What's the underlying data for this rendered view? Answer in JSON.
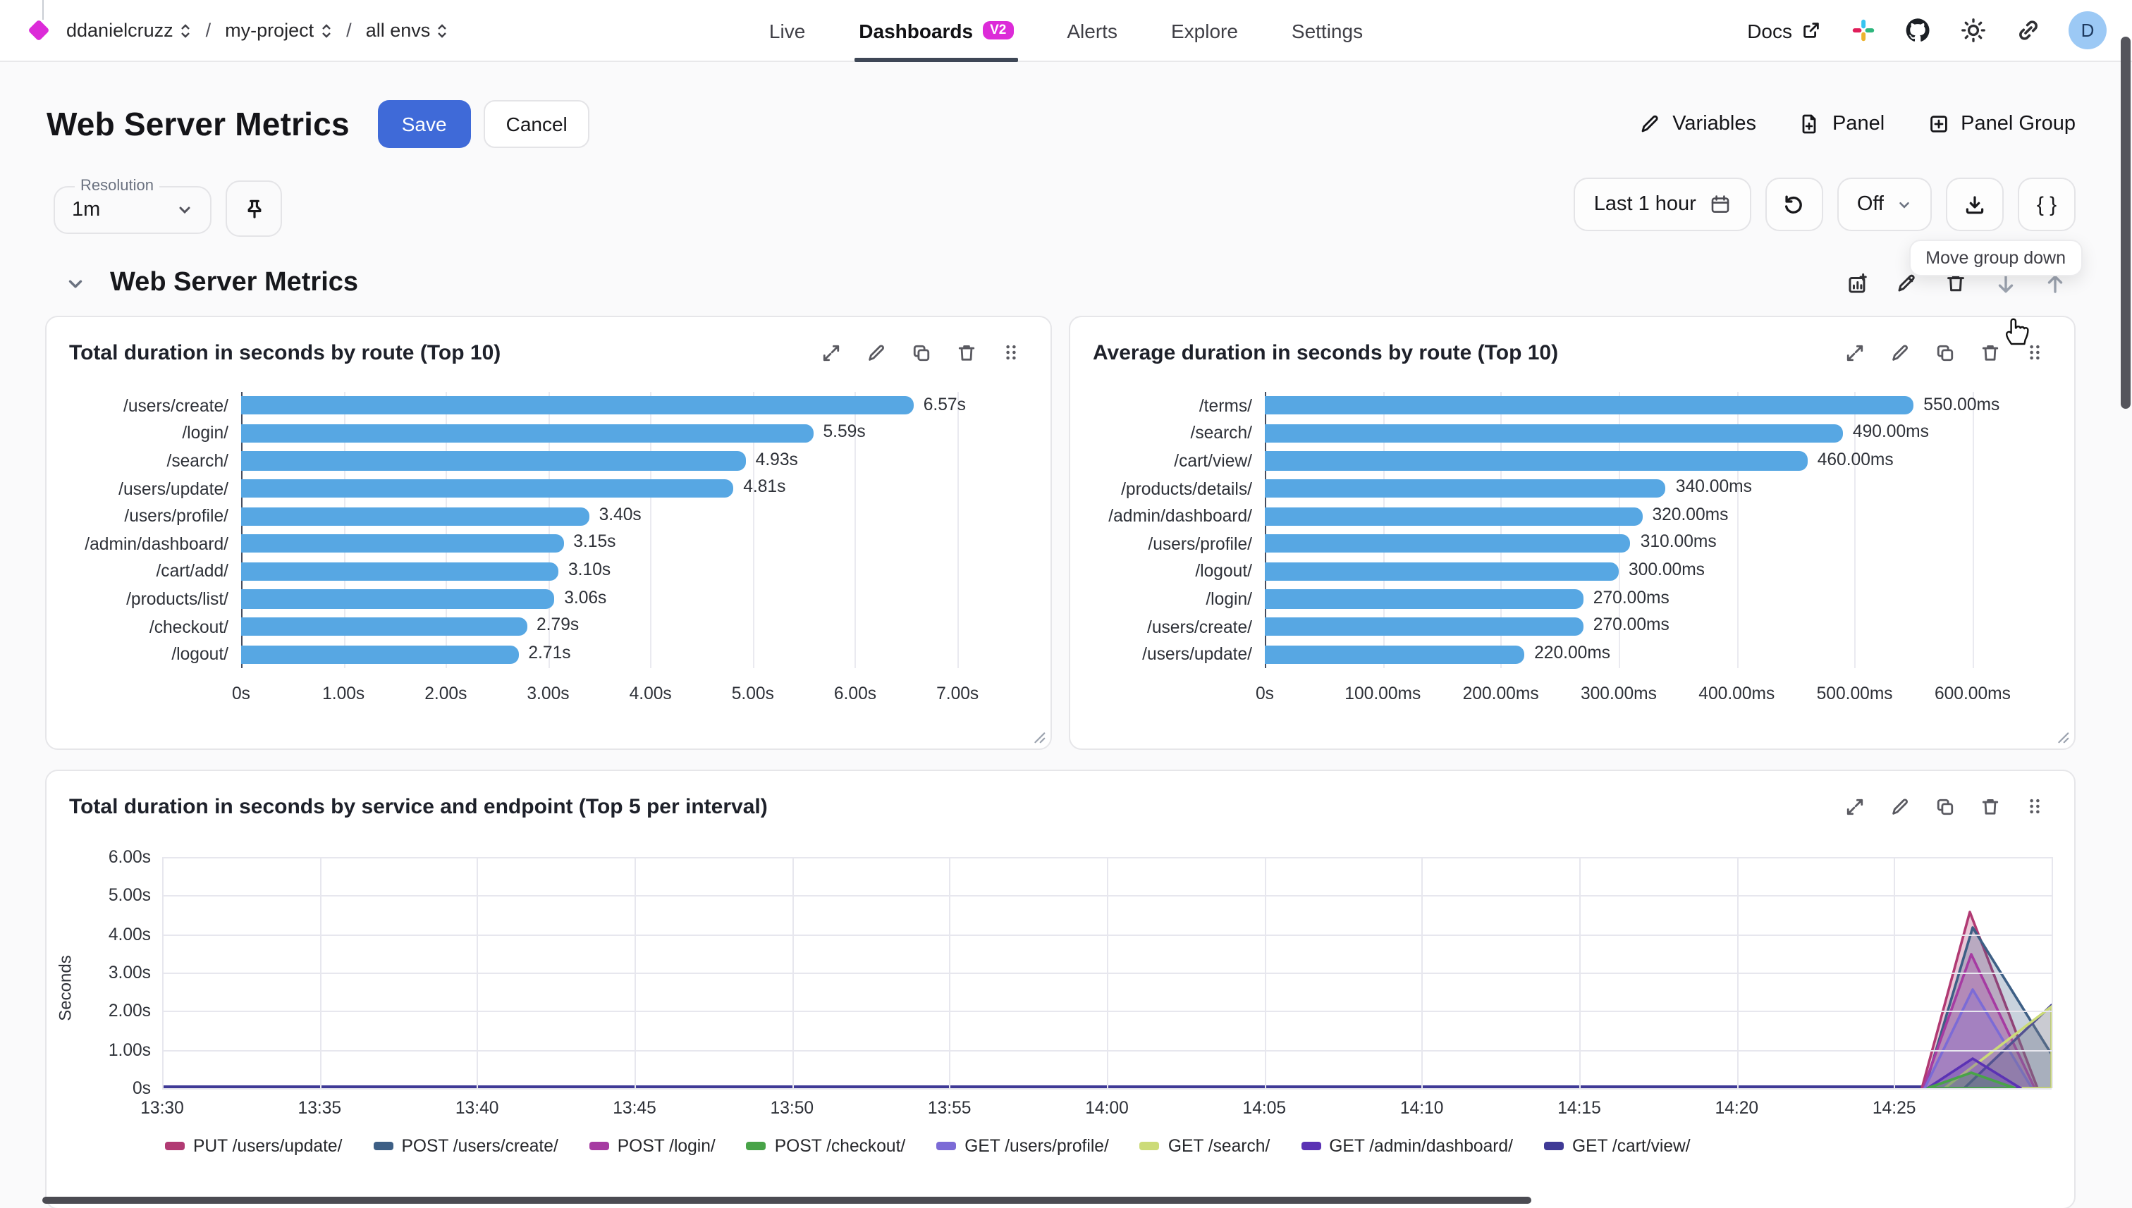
{
  "colors": {
    "primary": "#3F6AD8",
    "magenta": "#DC2BD8",
    "tab_underline": "#3E4756",
    "avatar_bg": "#9CC9F5",
    "bar_blue": "#57A7E3"
  },
  "header": {
    "breadcrumb": {
      "org": "ddanielcruzz",
      "sep": "/",
      "project": "my-project",
      "env": "all envs"
    },
    "nav": [
      {
        "label": "Live",
        "active": false
      },
      {
        "label": "Dashboards",
        "active": true,
        "badge": "V2"
      },
      {
        "label": "Alerts",
        "active": false
      },
      {
        "label": "Explore",
        "active": false
      },
      {
        "label": "Settings",
        "active": false
      }
    ],
    "docs_label": "Docs",
    "icons": [
      "external-link",
      "slack",
      "github",
      "theme-sun",
      "copy-link",
      "avatar"
    ],
    "avatar_initial": "D"
  },
  "toolbar": {
    "title": "Web Server Metrics",
    "save_label": "Save",
    "cancel_label": "Cancel",
    "variables_label": "Variables",
    "panel_label": "Panel",
    "panel_group_label": "Panel Group"
  },
  "controls": {
    "resolution_label": "Resolution",
    "resolution_value": "1m",
    "time_range_label": "Last 1 hour",
    "refresh_interval_value": "Off",
    "code_button_label": "{ }",
    "tooltip": "Move group down",
    "icons": [
      "pin",
      "calendar",
      "refresh",
      "download",
      "code"
    ]
  },
  "group": {
    "title": "Web Server Metrics",
    "actions": [
      "add-panel",
      "edit",
      "delete",
      "move-down",
      "move-up"
    ]
  },
  "panel_actions": [
    "expand",
    "edit",
    "duplicate",
    "delete",
    "drag"
  ],
  "chart_data": [
    {
      "type": "bar",
      "orientation": "horizontal",
      "title": "Total duration in seconds by route (Top 10)",
      "categories": [
        "/users/create/",
        "/login/",
        "/search/",
        "/users/update/",
        "/users/profile/",
        "/admin/dashboard/",
        "/cart/add/",
        "/products/list/",
        "/checkout/",
        "/logout/"
      ],
      "values": [
        6.57,
        5.59,
        4.93,
        4.81,
        3.4,
        3.15,
        3.1,
        3.06,
        2.79,
        2.71
      ],
      "value_labels": [
        "6.57s",
        "5.59s",
        "4.93s",
        "4.81s",
        "3.40s",
        "3.15s",
        "3.10s",
        "3.06s",
        "2.79s",
        "2.71s"
      ],
      "xticks": [
        {
          "v": 0,
          "label": "0s"
        },
        {
          "v": 1,
          "label": "1.00s"
        },
        {
          "v": 2,
          "label": "2.00s"
        },
        {
          "v": 3,
          "label": "3.00s"
        },
        {
          "v": 4,
          "label": "4.00s"
        },
        {
          "v": 5,
          "label": "5.00s"
        },
        {
          "v": 6,
          "label": "6.00s"
        },
        {
          "v": 7,
          "label": "7.00s"
        }
      ],
      "xmax": 7.55,
      "bar_color": "#57A7E3",
      "grid": true
    },
    {
      "type": "bar",
      "orientation": "horizontal",
      "title": "Average duration in seconds by route (Top 10)",
      "categories": [
        "/terms/",
        "/search/",
        "/cart/view/",
        "/products/details/",
        "/admin/dashboard/",
        "/users/profile/",
        "/logout/",
        "/login/",
        "/users/create/",
        "/users/update/"
      ],
      "values": [
        550,
        490,
        460,
        340,
        320,
        310,
        300,
        270,
        270,
        220
      ],
      "value_labels": [
        "550.00ms",
        "490.00ms",
        "460.00ms",
        "340.00ms",
        "320.00ms",
        "310.00ms",
        "300.00ms",
        "270.00ms",
        "270.00ms",
        "220.00ms"
      ],
      "xticks": [
        {
          "v": 0,
          "label": "0s"
        },
        {
          "v": 100,
          "label": "100.00ms"
        },
        {
          "v": 200,
          "label": "200.00ms"
        },
        {
          "v": 300,
          "label": "300.00ms"
        },
        {
          "v": 400,
          "label": "400.00ms"
        },
        {
          "v": 500,
          "label": "500.00ms"
        },
        {
          "v": 600,
          "label": "600.00ms"
        }
      ],
      "xmax": 655,
      "bar_color": "#57A7E3",
      "grid": true
    },
    {
      "type": "area",
      "title": "Total duration in seconds by service and endpoint (Top 5 per interval)",
      "ylabel": "Seconds",
      "yticks": [
        {
          "v": 0,
          "label": "0s"
        },
        {
          "v": 1,
          "label": "1.00s"
        },
        {
          "v": 2,
          "label": "2.00s"
        },
        {
          "v": 3,
          "label": "3.00s"
        },
        {
          "v": 4,
          "label": "4.00s"
        },
        {
          "v": 5,
          "label": "5.00s"
        },
        {
          "v": 6,
          "label": "6.00s"
        }
      ],
      "ymax": 6,
      "xticks": [
        "13:30",
        "13:35",
        "13:40",
        "13:45",
        "13:50",
        "13:55",
        "14:00",
        "14:05",
        "14:10",
        "14:15",
        "14:20",
        "14:25"
      ],
      "x_end": "14:30",
      "grid": true,
      "legend_position": "bottom",
      "baseline_note": "all series approx 0s from 13:30 until ~14:24, spike cluster near 14:25-14:29",
      "series": [
        {
          "name": "PUT /users/update/",
          "color": "#B13A73",
          "approx_peak_s": 4.6,
          "peak_time": "14:26"
        },
        {
          "name": "POST /users/create/",
          "color": "#3D5F85",
          "approx_peak_s": 4.2,
          "peak_time": "14:26"
        },
        {
          "name": "POST /login/",
          "color": "#A63BA2",
          "approx_peak_s": 3.5,
          "peak_time": "14:26"
        },
        {
          "name": "POST /checkout/",
          "color": "#48A348",
          "approx_peak_s": 0.4,
          "peak_time": "14:26"
        },
        {
          "name": "GET /users/profile/",
          "color": "#7C6BD6",
          "approx_peak_s": 2.6,
          "peak_time": "14:26"
        },
        {
          "name": "GET /search/",
          "color": "#CCDB78",
          "approx_peak_s": 2.2,
          "peak_time": "14:29"
        },
        {
          "name": "GET /admin/dashboard/",
          "color": "#5B32B4",
          "approx_peak_s": 0.8,
          "peak_time": "14:26"
        },
        {
          "name": "GET /cart/view/",
          "color": "#3F3A96",
          "approx_peak_s": 2.2,
          "peak_time": "14:29"
        }
      ]
    }
  ]
}
